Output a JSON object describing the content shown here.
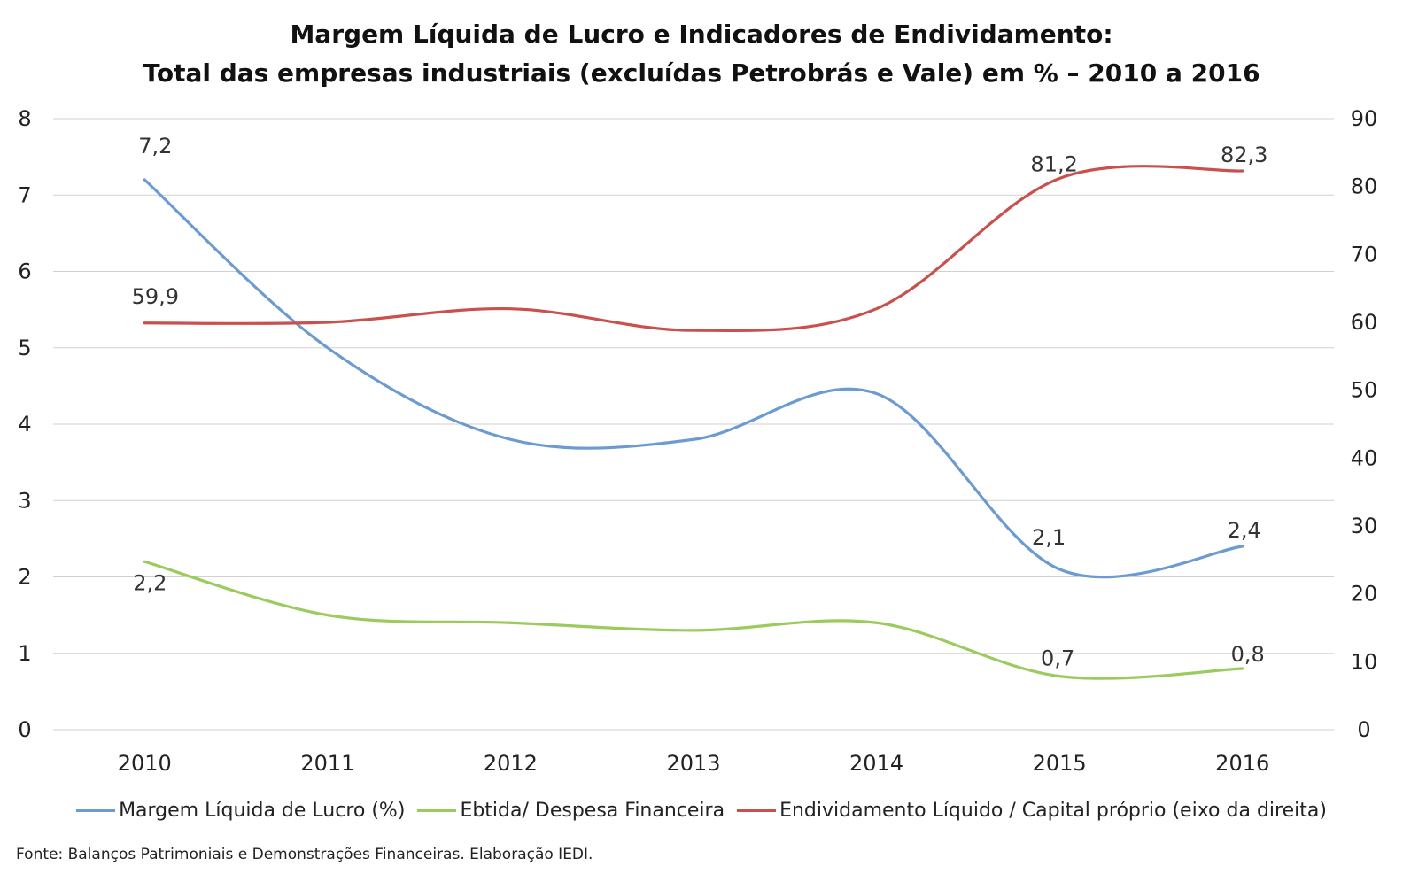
{
  "chart_data": {
    "type": "line",
    "title_line1": "Margem Líquida de Lucro e Indicadores de Endividamento:",
    "title_line2": "Total das empresas industriais (excluídas Petrobrás e Vale) em % – 2010 a 2016",
    "categories": [
      "2010",
      "2011",
      "2012",
      "2013",
      "2014",
      "2015",
      "2016"
    ],
    "left_axis": {
      "ylim": [
        0,
        8
      ],
      "ticks": [
        "0",
        "1",
        "2",
        "3",
        "4",
        "5",
        "6",
        "7",
        "8"
      ]
    },
    "right_axis": {
      "ylim": [
        0,
        90
      ],
      "ticks": [
        "0",
        "10",
        "20",
        "30",
        "40",
        "50",
        "60",
        "70",
        "80",
        "90"
      ]
    },
    "grid": true,
    "legend_position": "bottom",
    "series": [
      {
        "name": "Margem Líquida de Lucro (%)",
        "axis": "left",
        "color": "#6b9bd0",
        "values": [
          7.2,
          5.0,
          3.8,
          3.8,
          4.4,
          2.1,
          2.4
        ],
        "labels": [
          "7,2",
          "",
          "",
          "",
          "",
          "2,1",
          "2,4"
        ]
      },
      {
        "name": "Ebtida/ Despesa Financeira",
        "axis": "left",
        "color": "#9bcb5c",
        "values": [
          2.2,
          1.5,
          1.4,
          1.3,
          1.4,
          0.7,
          0.8
        ],
        "labels": [
          "2,2",
          "",
          "",
          "",
          "",
          "0,7",
          "0,8"
        ]
      },
      {
        "name": "Endividamento Líquido / Capital próprio (eixo da direita)",
        "axis": "right",
        "color": "#c9504d",
        "values": [
          59.9,
          60.0,
          62.0,
          58.8,
          62.0,
          81.2,
          82.3
        ],
        "labels": [
          "59,9",
          "",
          "",
          "",
          "",
          "81,2",
          "82,3"
        ]
      }
    ],
    "source": "Fonte: Balanços Patrimoniais e Demonstrações Financeiras. Elaboração IEDI."
  }
}
